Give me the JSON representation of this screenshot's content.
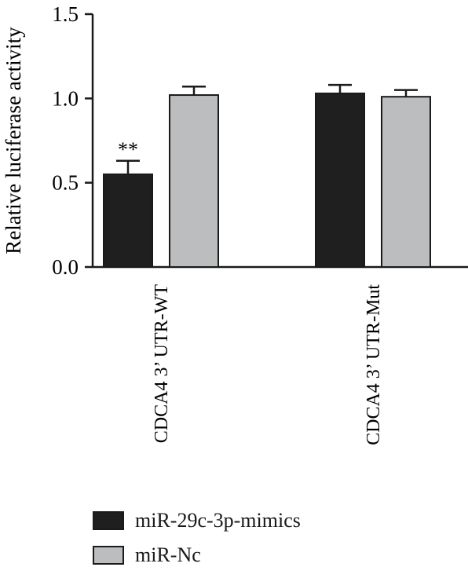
{
  "chart_data": {
    "type": "bar",
    "ylabel": "Relative luciferase activity",
    "xlabel": "",
    "ylim": [
      0,
      1.5
    ],
    "yticks": [
      "0.0",
      "0.5",
      "1.0",
      "1.5"
    ],
    "categories": [
      "CDCA4 3’ UTR-WT",
      "CDCA4 3’ UTR-Mut"
    ],
    "series": [
      {
        "name": "miR-29c-3p-mimics",
        "color": "#1f1f1f",
        "values": [
          0.55,
          1.03
        ],
        "errors": [
          0.08,
          0.05
        ]
      },
      {
        "name": "miR-Nc",
        "color": "#bcbdbf",
        "values": [
          1.02,
          1.01
        ],
        "errors": [
          0.05,
          0.04
        ]
      }
    ],
    "annotations": [
      {
        "text": "**",
        "category": 0,
        "series": 0
      }
    ],
    "legend_position": "bottom-left"
  }
}
